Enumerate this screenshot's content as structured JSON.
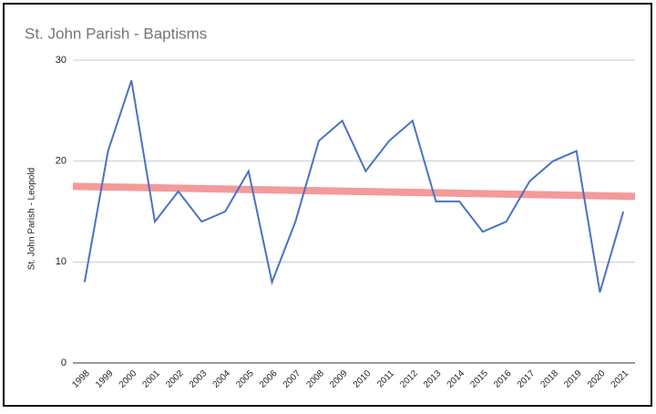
{
  "chart_data": {
    "type": "line",
    "title": "St. John Parish - Baptisms",
    "ylabel": "St. John Parish - Leopold",
    "categories": [
      "1998",
      "1999",
      "2000",
      "2001",
      "2002",
      "2003",
      "2004",
      "2005",
      "2006",
      "2007",
      "2008",
      "2009",
      "2010",
      "2011",
      "2012",
      "2013",
      "2014",
      "2015",
      "2016",
      "2017",
      "2018",
      "2019",
      "2020",
      "2021"
    ],
    "series": [
      {
        "color": "#4a72c4",
        "values": [
          8,
          21,
          28,
          14,
          17,
          14,
          15,
          19,
          8,
          14,
          22,
          24,
          19,
          22,
          24,
          16,
          16,
          13,
          14,
          18,
          20,
          21,
          7,
          15
        ]
      }
    ],
    "trendline": {
      "color": "#f49a9a",
      "start": 17.5,
      "end": 16.5
    },
    "ylim": [
      0,
      30
    ],
    "yticks": [
      0,
      10,
      20,
      30
    ],
    "grid": true
  }
}
